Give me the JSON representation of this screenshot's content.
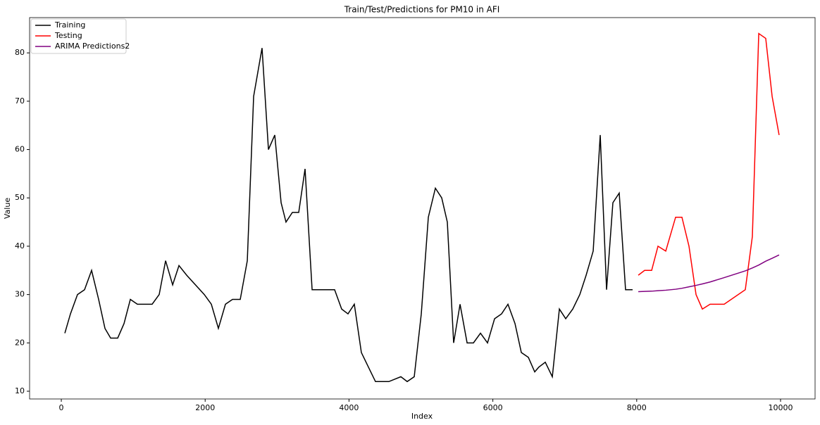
{
  "chart_data": {
    "type": "line",
    "title": "Train/Test/Predictions for PM10 in AFI",
    "x_label": "Index",
    "y_label": "Value",
    "xlim": [
      -441,
      10480
    ],
    "ylim": [
      8.4,
      87.3
    ],
    "xticks": [
      0,
      2000,
      4000,
      6000,
      8000,
      10000
    ],
    "yticks": [
      10,
      20,
      30,
      40,
      50,
      60,
      70,
      80
    ],
    "legend": "upper left",
    "series": [
      {
        "name": "Training",
        "color": "#000000",
        "x": [
          49,
          127,
          225,
          323,
          421,
          519,
          607,
          686,
          784,
          872,
          960,
          1058,
          1166,
          1263,
          1361,
          1450,
          1548,
          1636,
          1743,
          1988,
          2086,
          2184,
          2282,
          2380,
          2488,
          2586,
          2674,
          2791,
          2880,
          2968,
          3056,
          3124,
          3213,
          3301,
          3389,
          3487,
          3800,
          3898,
          3986,
          4074,
          4172,
          4270,
          4368,
          4554,
          4721,
          4809,
          4907,
          5005,
          5103,
          5201,
          5289,
          5367,
          5455,
          5544,
          5642,
          5730,
          5828,
          5926,
          6024,
          6121,
          6210,
          6308,
          6396,
          6494,
          6582,
          6640,
          6729,
          6827,
          6925,
          7013,
          7111,
          7209,
          7297,
          7395,
          7493,
          7581,
          7669,
          7757,
          7845,
          7943
        ],
        "values": [
          22,
          26,
          30,
          31,
          35,
          29,
          23,
          21,
          21,
          24,
          29,
          28,
          28,
          28,
          30,
          37,
          32,
          36,
          34,
          30,
          28,
          23,
          28,
          29,
          29,
          37,
          71,
          81,
          60,
          63,
          49,
          45,
          47,
          47,
          56,
          31,
          31,
          27,
          26,
          28,
          18,
          15,
          12,
          12,
          13,
          12,
          13,
          26,
          46,
          52,
          50,
          45,
          20,
          28,
          20,
          20,
          22,
          20,
          25,
          26,
          28,
          24,
          18,
          17,
          14,
          15,
          16,
          13,
          27,
          25,
          27,
          30,
          34,
          39,
          63,
          31,
          49,
          51,
          31,
          31
        ]
      },
      {
        "name": "Testing",
        "color": "#ff0000",
        "x": [
          8022,
          8110,
          8208,
          8296,
          8404,
          8541,
          8629,
          8727,
          8825,
          8913,
          9020,
          9216,
          9510,
          9608,
          9697,
          9794,
          9883,
          9980
        ],
        "values": [
          34,
          35,
          35,
          40,
          39,
          46,
          46,
          40,
          30,
          27,
          28,
          28,
          31,
          42,
          84,
          83,
          71,
          63
        ]
      },
      {
        "name": "ARIMA Predictions2",
        "color": "#800080",
        "x": [
          8022,
          8110,
          8208,
          8296,
          8404,
          8541,
          8629,
          8727,
          8825,
          8913,
          9020,
          9216,
          9510,
          9608,
          9697,
          9794,
          9883,
          9980
        ],
        "values": [
          30.6,
          30.65,
          30.7,
          30.8,
          30.9,
          31.1,
          31.3,
          31.6,
          31.9,
          32.2,
          32.6,
          33.5,
          34.9,
          35.5,
          36.1,
          36.9,
          37.5,
          38.2
        ]
      }
    ]
  }
}
